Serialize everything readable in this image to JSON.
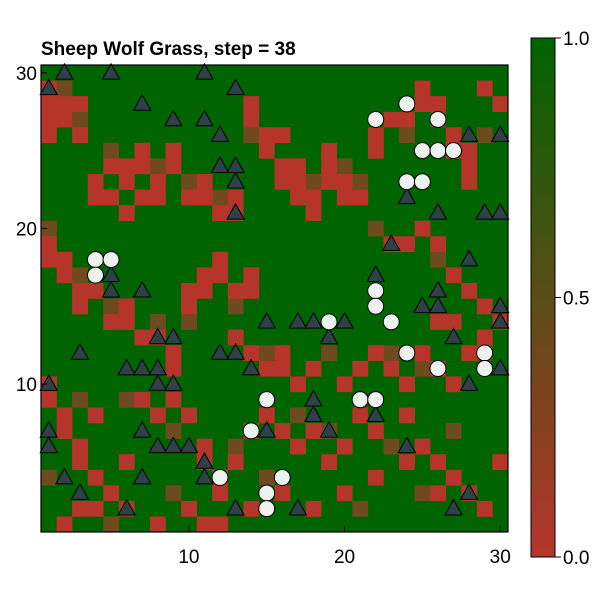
{
  "chart_data": {
    "type": "heatmap",
    "title": "Sheep Wolf Grass, step = 38",
    "xlim": [
      0.5,
      30.5
    ],
    "ylim": [
      0.5,
      30.5
    ],
    "x_ticks": [
      10,
      20,
      30
    ],
    "y_ticks": [
      10,
      20,
      30
    ],
    "grid": false,
    "grid_size": [
      30,
      30
    ],
    "colorbar": {
      "range": [
        0.0,
        1.0
      ],
      "ticks": [
        "0.0",
        "0.5",
        "1.0"
      ],
      "low_color": "#b5352b",
      "high_color": "#006400",
      "placement": "right"
    },
    "grass_low_cells": [
      [
        1,
        29
      ],
      [
        1,
        28
      ],
      [
        1,
        27
      ],
      [
        1,
        26
      ],
      [
        2,
        28
      ],
      [
        2,
        27
      ],
      [
        3,
        28
      ],
      [
        3,
        26
      ],
      [
        4,
        23
      ],
      [
        4,
        22
      ],
      [
        5,
        24
      ],
      [
        5,
        22
      ],
      [
        6,
        24
      ],
      [
        6,
        23
      ],
      [
        6,
        21
      ],
      [
        7,
        25
      ],
      [
        7,
        24
      ],
      [
        7,
        22
      ],
      [
        8,
        23
      ],
      [
        8,
        22
      ],
      [
        9,
        25
      ],
      [
        9,
        24
      ],
      [
        10,
        22
      ],
      [
        11,
        22
      ],
      [
        11,
        23
      ],
      [
        12,
        21
      ],
      [
        13,
        22
      ],
      [
        13,
        21
      ],
      [
        14,
        28
      ],
      [
        14,
        27
      ],
      [
        15,
        26
      ],
      [
        15,
        25
      ],
      [
        16,
        26
      ],
      [
        16,
        24
      ],
      [
        16,
        23
      ],
      [
        17,
        24
      ],
      [
        17,
        23
      ],
      [
        17,
        22
      ],
      [
        18,
        22
      ],
      [
        18,
        21
      ],
      [
        19,
        25
      ],
      [
        19,
        24
      ],
      [
        19,
        23
      ],
      [
        20,
        23
      ],
      [
        20,
        22
      ],
      [
        21,
        22
      ],
      [
        22,
        26
      ],
      [
        22,
        25
      ],
      [
        23,
        27
      ],
      [
        24,
        27
      ],
      [
        25,
        28
      ],
      [
        25,
        29
      ],
      [
        26,
        28
      ],
      [
        27,
        26
      ],
      [
        27,
        25
      ],
      [
        28,
        25
      ],
      [
        28,
        24
      ],
      [
        28,
        23
      ],
      [
        29,
        29
      ],
      [
        30,
        28
      ],
      [
        1,
        19
      ],
      [
        1,
        18
      ],
      [
        2,
        18
      ],
      [
        2,
        17
      ],
      [
        3,
        16
      ],
      [
        3,
        15
      ],
      [
        4,
        16
      ],
      [
        5,
        14
      ],
      [
        6,
        15
      ],
      [
        6,
        14
      ],
      [
        7,
        13
      ],
      [
        8,
        13
      ],
      [
        9,
        12
      ],
      [
        9,
        11
      ],
      [
        10,
        16
      ],
      [
        10,
        15
      ],
      [
        11,
        17
      ],
      [
        11,
        16
      ],
      [
        12,
        18
      ],
      [
        12,
        17
      ],
      [
        13,
        16
      ],
      [
        14,
        17
      ],
      [
        14,
        16
      ],
      [
        13,
        13
      ],
      [
        14,
        12
      ],
      [
        15,
        11
      ],
      [
        16,
        12
      ],
      [
        16,
        11
      ],
      [
        17,
        10
      ],
      [
        18,
        11
      ],
      [
        20,
        10
      ],
      [
        21,
        11
      ],
      [
        22,
        12
      ],
      [
        23,
        11
      ],
      [
        24,
        10
      ],
      [
        25,
        12
      ],
      [
        26,
        11
      ],
      [
        27,
        10
      ],
      [
        28,
        12
      ],
      [
        29,
        13
      ],
      [
        23,
        19
      ],
      [
        24,
        19
      ],
      [
        25,
        20
      ],
      [
        26,
        19
      ],
      [
        27,
        17
      ],
      [
        28,
        16
      ],
      [
        29,
        15
      ],
      [
        30,
        14
      ],
      [
        27,
        14
      ],
      [
        26,
        14
      ],
      [
        1,
        10
      ],
      [
        1,
        9
      ],
      [
        2,
        8
      ],
      [
        2,
        7
      ],
      [
        3,
        6
      ],
      [
        3,
        5
      ],
      [
        4,
        8
      ],
      [
        4,
        4
      ],
      [
        5,
        3
      ],
      [
        6,
        5
      ],
      [
        7,
        9
      ],
      [
        8,
        8
      ],
      [
        9,
        9
      ],
      [
        10,
        8
      ],
      [
        11,
        6
      ],
      [
        11,
        5
      ],
      [
        12,
        4
      ],
      [
        12,
        3
      ],
      [
        13,
        5
      ],
      [
        14,
        7
      ],
      [
        15,
        8
      ],
      [
        16,
        7
      ],
      [
        17,
        6
      ],
      [
        18,
        7
      ],
      [
        19,
        5
      ],
      [
        20,
        6
      ],
      [
        21,
        8
      ],
      [
        22,
        7
      ],
      [
        24,
        8
      ],
      [
        25,
        6
      ],
      [
        26,
        5
      ],
      [
        27,
        4
      ],
      [
        28,
        3
      ],
      [
        29,
        2
      ],
      [
        30,
        5
      ],
      [
        2,
        1
      ],
      [
        4,
        2
      ],
      [
        6,
        2
      ],
      [
        8,
        1
      ],
      [
        10,
        2
      ],
      [
        12,
        1
      ],
      [
        14,
        2
      ],
      [
        16,
        3
      ],
      [
        18,
        2
      ],
      [
        20,
        3
      ],
      [
        22,
        4
      ],
      [
        24,
        5
      ],
      [
        26,
        3
      ],
      [
        11,
        1
      ],
      [
        3,
        2
      ]
    ],
    "grass_mid_cells": [
      [
        2,
        29
      ],
      [
        3,
        27
      ],
      [
        5,
        25
      ],
      [
        8,
        24
      ],
      [
        10,
        23
      ],
      [
        12,
        22
      ],
      [
        14,
        26
      ],
      [
        18,
        23
      ],
      [
        20,
        24
      ],
      [
        21,
        23
      ],
      [
        24,
        26
      ],
      [
        26,
        27
      ],
      [
        29,
        26
      ],
      [
        1,
        20
      ],
      [
        3,
        17
      ],
      [
        5,
        15
      ],
      [
        8,
        14
      ],
      [
        10,
        14
      ],
      [
        13,
        15
      ],
      [
        15,
        12
      ],
      [
        19,
        12
      ],
      [
        23,
        12
      ],
      [
        25,
        11
      ],
      [
        29,
        12
      ],
      [
        22,
        20
      ],
      [
        26,
        18
      ],
      [
        3,
        9
      ],
      [
        6,
        9
      ],
      [
        9,
        7
      ],
      [
        13,
        6
      ],
      [
        17,
        8
      ],
      [
        19,
        7
      ],
      [
        23,
        6
      ],
      [
        27,
        7
      ],
      [
        1,
        4
      ],
      [
        5,
        1
      ],
      [
        9,
        3
      ],
      [
        15,
        4
      ],
      [
        21,
        2
      ],
      [
        25,
        3
      ]
    ],
    "sheep": [
      [
        4,
        18
      ],
      [
        5,
        18
      ],
      [
        4,
        17
      ],
      [
        24,
        28
      ],
      [
        22,
        27
      ],
      [
        26,
        27
      ],
      [
        25,
        25
      ],
      [
        26,
        25
      ],
      [
        27,
        25
      ],
      [
        24,
        23
      ],
      [
        25,
        23
      ],
      [
        22,
        16
      ],
      [
        22,
        15
      ],
      [
        23,
        14
      ],
      [
        19,
        14
      ],
      [
        24,
        12
      ],
      [
        26,
        11
      ],
      [
        29,
        12
      ],
      [
        29,
        11
      ],
      [
        21,
        9
      ],
      [
        22,
        9
      ],
      [
        15,
        9
      ],
      [
        14,
        7
      ],
      [
        16,
        4
      ],
      [
        12,
        4
      ],
      [
        15,
        3
      ],
      [
        15,
        2
      ]
    ],
    "wolves": [
      [
        1,
        29
      ],
      [
        2,
        30
      ],
      [
        5,
        30
      ],
      [
        11,
        30
      ],
      [
        13,
        29
      ],
      [
        7,
        28
      ],
      [
        9,
        27
      ],
      [
        11,
        27
      ],
      [
        12,
        26
      ],
      [
        28,
        26
      ],
      [
        30,
        26
      ],
      [
        12,
        24
      ],
      [
        13,
        24
      ],
      [
        13,
        23
      ],
      [
        24,
        22
      ],
      [
        13,
        21
      ],
      [
        26,
        21
      ],
      [
        29,
        21
      ],
      [
        30,
        21
      ],
      [
        23,
        19
      ],
      [
        28,
        18
      ],
      [
        22,
        17
      ],
      [
        5,
        17
      ],
      [
        5,
        16
      ],
      [
        7,
        16
      ],
      [
        26,
        16
      ],
      [
        25,
        15
      ],
      [
        26,
        15
      ],
      [
        30,
        15
      ],
      [
        15,
        14
      ],
      [
        17,
        14
      ],
      [
        18,
        14
      ],
      [
        20,
        14
      ],
      [
        30,
        14
      ],
      [
        8,
        13
      ],
      [
        9,
        13
      ],
      [
        27,
        13
      ],
      [
        19,
        13
      ],
      [
        3,
        12
      ],
      [
        12,
        12
      ],
      [
        13,
        12
      ],
      [
        6,
        11
      ],
      [
        7,
        11
      ],
      [
        8,
        11
      ],
      [
        14,
        11
      ],
      [
        28,
        10
      ],
      [
        30,
        11
      ],
      [
        1,
        10
      ],
      [
        8,
        10
      ],
      [
        9,
        10
      ],
      [
        18,
        9
      ],
      [
        22,
        8
      ],
      [
        18,
        8
      ],
      [
        1,
        7
      ],
      [
        7,
        7
      ],
      [
        15,
        7
      ],
      [
        19,
        7
      ],
      [
        24,
        6
      ],
      [
        1,
        6
      ],
      [
        8,
        6
      ],
      [
        9,
        6
      ],
      [
        10,
        6
      ],
      [
        11,
        5
      ],
      [
        2,
        4
      ],
      [
        7,
        4
      ],
      [
        11,
        4
      ],
      [
        3,
        3
      ],
      [
        28,
        3
      ],
      [
        6,
        2
      ],
      [
        13,
        2
      ],
      [
        17,
        2
      ],
      [
        27,
        2
      ]
    ]
  }
}
